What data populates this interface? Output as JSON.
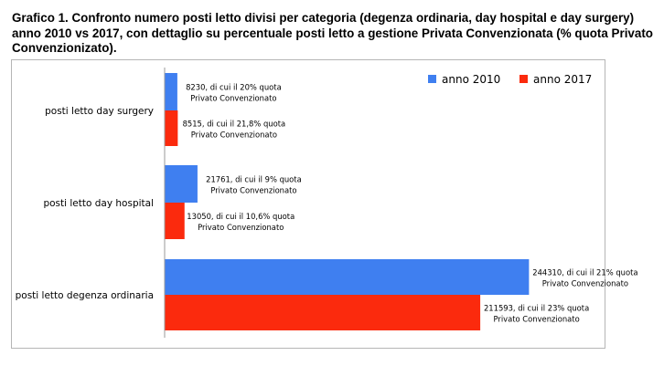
{
  "caption": "Grafico 1. Confronto numero posti letto divisi per categoria (degenza ordinaria, day hospital e day surgery) anno 2010 vs 2017, con dettaglio su percentuale posti letto a gestione Privata Convenzionata (% quota Privato Convenzionizato).",
  "chart_data": {
    "type": "bar",
    "orientation": "horizontal",
    "categories": [
      "posti letto day surgery",
      "posti letto day hospital",
      "posti letto degenza ordinaria"
    ],
    "series": [
      {
        "name": "anno 2010",
        "color": "#3f7ff0",
        "values": [
          8230,
          21761,
          244310
        ],
        "labels": [
          [
            "8230, di cui il 20% quota",
            "Privato Convenzionato"
          ],
          [
            "21761, di cui il 9% quota",
            "Privato Convenzionato"
          ],
          [
            "244310, di cui il 21% quota",
            "Privato Convenzionato"
          ]
        ]
      },
      {
        "name": "anno 2017",
        "color": "#fb2a0d",
        "values": [
          8515,
          13050,
          211593
        ],
        "labels": [
          [
            "8515, di cui il 21,8% quota",
            "Privato Convenzionato"
          ],
          [
            "13050, di cui il 10,6% quota",
            "Privato Convenzionato"
          ],
          [
            "211593, di cui il 23% quota",
            "Privato Convenzionato"
          ]
        ]
      }
    ],
    "xlim": [
      0,
      280000
    ],
    "legend_position": "top-right",
    "grid": false
  }
}
